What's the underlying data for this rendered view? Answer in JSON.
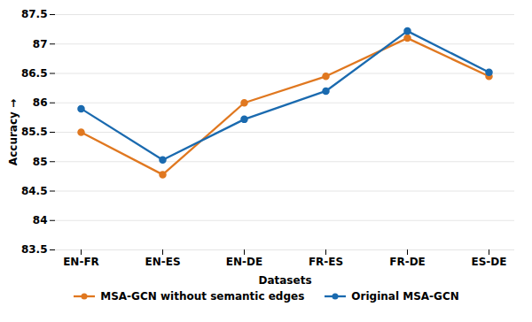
{
  "chart_data": {
    "type": "line",
    "categories": [
      "EN-FR",
      "EN-ES",
      "EN-DE",
      "FR-ES",
      "FR-DE",
      "ES-DE"
    ],
    "series": [
      {
        "name": "MSA-GCN without semantic edges",
        "color": "#E07820",
        "marker": "circle",
        "values": [
          85.5,
          84.78,
          86.0,
          86.45,
          87.1,
          86.45
        ]
      },
      {
        "name": "Original MSA-GCN",
        "color": "#1A6AAF",
        "marker": "circle",
        "values": [
          85.9,
          85.03,
          85.72,
          86.2,
          87.22,
          86.52
        ]
      }
    ],
    "xlabel": "Datasets",
    "ylabel": "Accuracy",
    "ylim": [
      83.5,
      87.5
    ],
    "yticks": [
      83.5,
      84,
      84.5,
      85,
      85.5,
      86,
      86.5,
      87,
      87.5
    ],
    "grid": true,
    "legend": "bottom"
  }
}
